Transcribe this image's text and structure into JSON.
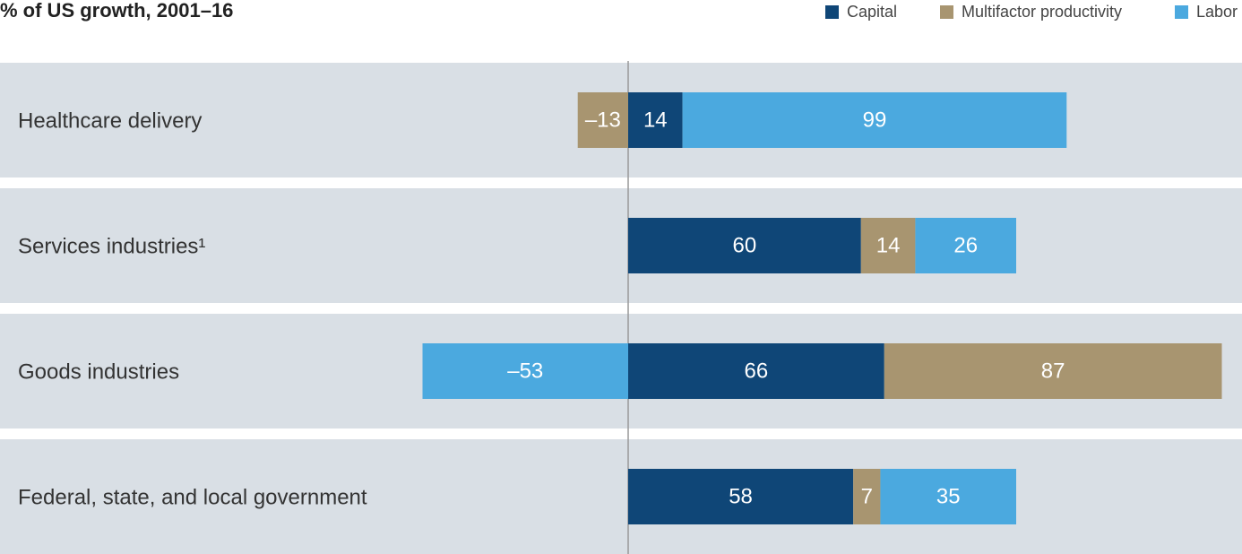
{
  "chart_data": {
    "type": "stacked-bar-horizontal",
    "title": "% of US growth, 2001–16",
    "categories": [
      "Healthcare delivery",
      "Services industries¹",
      "Goods industries",
      "Federal, state, and local government"
    ],
    "series": [
      {
        "name": "Capital",
        "color": "#0f4677",
        "values": [
          14,
          60,
          66,
          58
        ],
        "value_labels": [
          "14",
          "60",
          "66",
          "58"
        ]
      },
      {
        "name": "Multifactor productivity",
        "color": "#a89570",
        "values": [
          -13,
          14,
          87,
          7
        ],
        "value_labels": [
          "–13",
          "14",
          "87",
          "7"
        ]
      },
      {
        "name": "Labor",
        "color": "#4ba9df",
        "values": [
          99,
          26,
          -53,
          35
        ],
        "value_labels": [
          "99",
          "26",
          "–53",
          "35"
        ]
      }
    ]
  }
}
